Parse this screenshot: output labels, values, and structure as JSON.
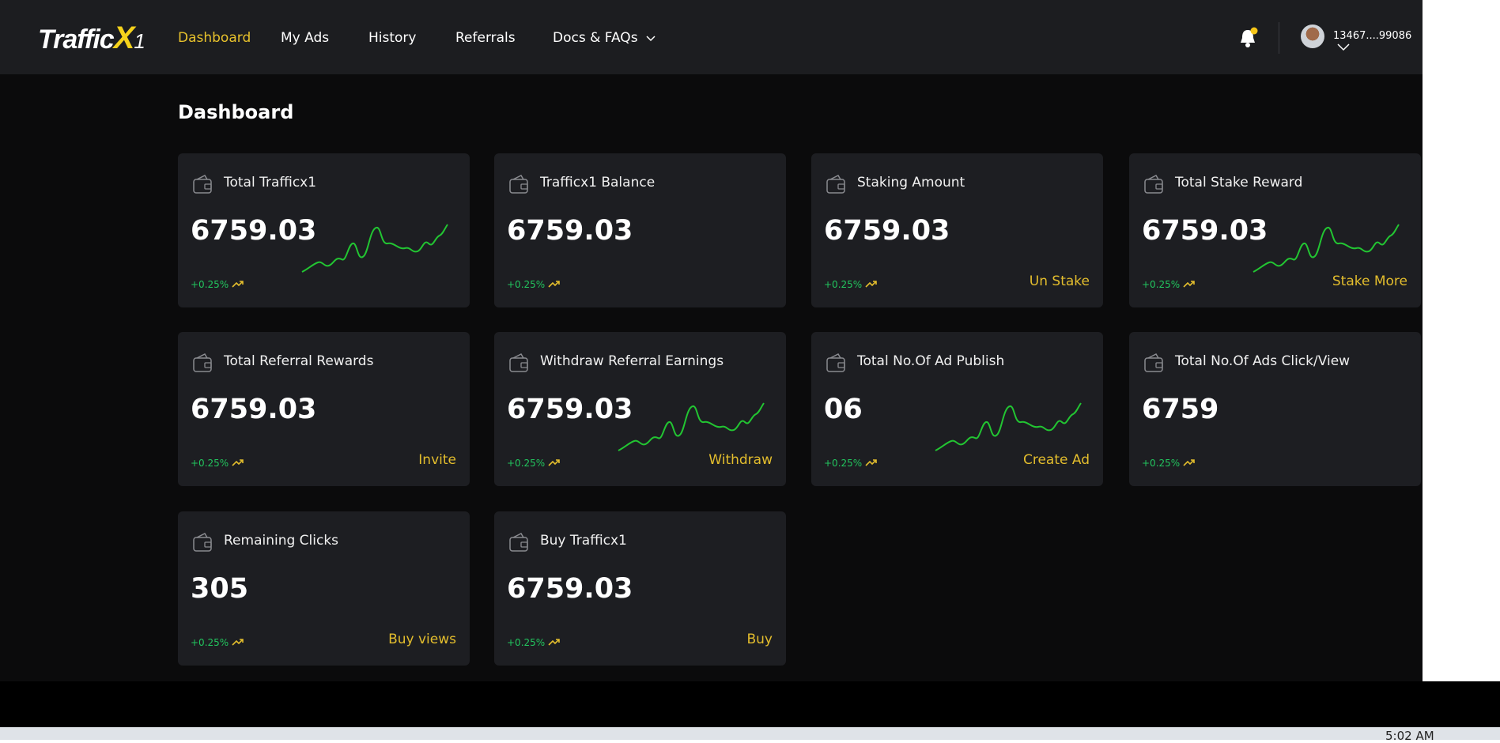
{
  "header": {
    "logo": [
      "Traffic",
      "X",
      "1"
    ],
    "nav": [
      "Dashboard",
      "My Ads",
      "History",
      "Referrals",
      "Docs & FAQs"
    ],
    "user": "13467....99086"
  },
  "page": {
    "title": "Dashboard"
  },
  "cards": [
    {
      "title": "Total Trafficx1",
      "value": "6759.03",
      "change": "+0.25%"
    },
    {
      "title": "Trafficx1 Balance",
      "value": "6759.03",
      "change": "+0.25%"
    },
    {
      "title": "Staking Amount",
      "value": "6759.03",
      "change": "+0.25%",
      "action": "Un Stake"
    },
    {
      "title": "Total Stake Reward",
      "value": "6759.03",
      "change": "+0.25%",
      "action": "Stake More"
    },
    {
      "title": "Total Referral Rewards",
      "value": "6759.03",
      "change": "+0.25%",
      "action": "Invite"
    },
    {
      "title": "Withdraw Referral Earnings",
      "value": "6759.03",
      "change": "+0.25%",
      "action": "Withdraw"
    },
    {
      "title": "Total No.Of Ad Publish",
      "value": "06",
      "change": "+0.25%",
      "action": "Create Ad"
    },
    {
      "title": "Total No.Of Ads Click/View",
      "value": "6759",
      "change": "+0.25%"
    },
    {
      "title": "Remaining Clicks",
      "value": "305",
      "change": "+0.25%",
      "action": "Buy views"
    },
    {
      "title": "Buy Trafficx1",
      "value": "6759.03",
      "change": "+0.25%",
      "action": "Buy"
    }
  ],
  "taskbar": {
    "time": "5:02 AM"
  }
}
